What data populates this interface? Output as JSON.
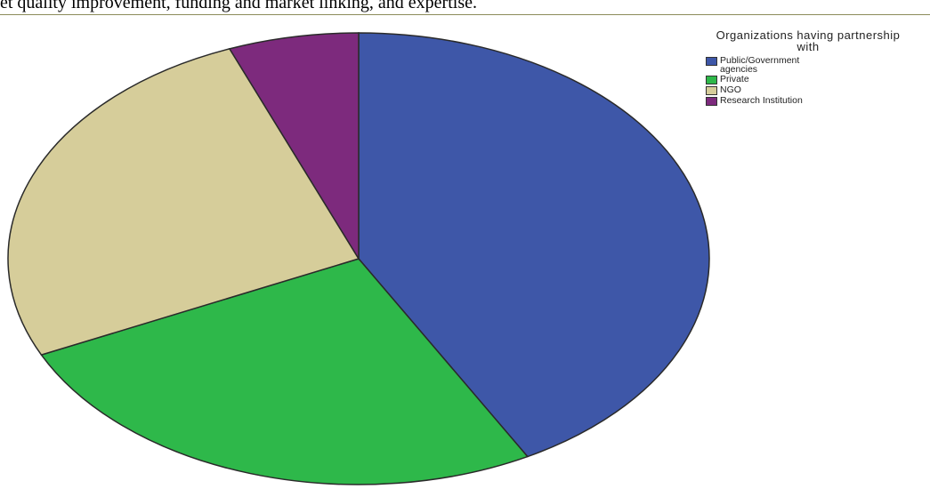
{
  "caption": {
    "text": "et quality improvement, funding and market linking, and expertise."
  },
  "chart_data": {
    "type": "pie",
    "legend_title": "Organizations having partnership with",
    "legend_position": "top-right",
    "slices": [
      {
        "label": "Public/Government agencies",
        "value": 42,
        "color": "#3e57a8"
      },
      {
        "label": "Private",
        "value": 26,
        "color": "#2eb84a"
      },
      {
        "label": "NGO",
        "value": 26,
        "color": "#d6cd9a"
      },
      {
        "label": "Research Institution",
        "value": 6,
        "color": "#7d2a7d"
      }
    ]
  }
}
